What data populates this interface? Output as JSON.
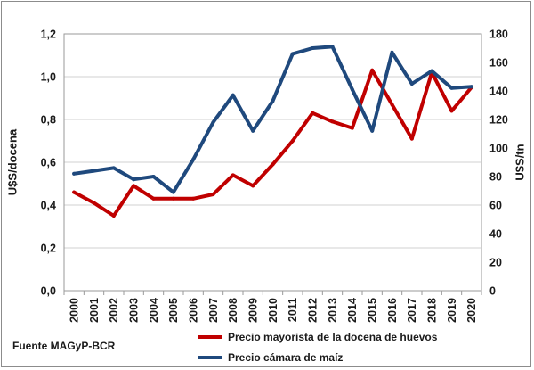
{
  "chart_data": {
    "type": "line",
    "categories": [
      "2000",
      "2001",
      "2002",
      "2003",
      "2004",
      "2005",
      "2006",
      "2007",
      "2008",
      "2009",
      "2010",
      "2011",
      "2012",
      "2013",
      "2014",
      "2015",
      "2016",
      "2017",
      "2018",
      "2019",
      "2020"
    ],
    "series": [
      {
        "name": "Precio mayorista de la docena de huevos",
        "axis": "left",
        "color": "#c00000",
        "values": [
          0.46,
          0.41,
          0.35,
          0.49,
          0.43,
          0.43,
          0.43,
          0.45,
          0.54,
          0.49,
          0.59,
          0.7,
          0.83,
          0.79,
          0.76,
          1.03,
          0.87,
          0.71,
          1.02,
          0.84,
          0.95
        ]
      },
      {
        "name": "Precio cámara de maíz",
        "axis": "right",
        "color": "#1f497d",
        "values": [
          82,
          84,
          86,
          78,
          80,
          69,
          92,
          118,
          137,
          112,
          133,
          166,
          170,
          171,
          141,
          112,
          167,
          145,
          154,
          142,
          143
        ]
      }
    ],
    "y_left": {
      "label": "U$S/docena",
      "min": 0,
      "max": 1.2,
      "ticks": [
        "0,0",
        "0,2",
        "0,4",
        "0,6",
        "0,8",
        "1,0",
        "1,2"
      ]
    },
    "y_right": {
      "label": "U$S/tn",
      "min": 0,
      "max": 180,
      "ticks": [
        "0",
        "20",
        "40",
        "60",
        "80",
        "100",
        "120",
        "140",
        "160",
        "180"
      ]
    },
    "grid": true,
    "legend_position": "bottom",
    "source_note": "Fuente MAGyP-BCR"
  }
}
